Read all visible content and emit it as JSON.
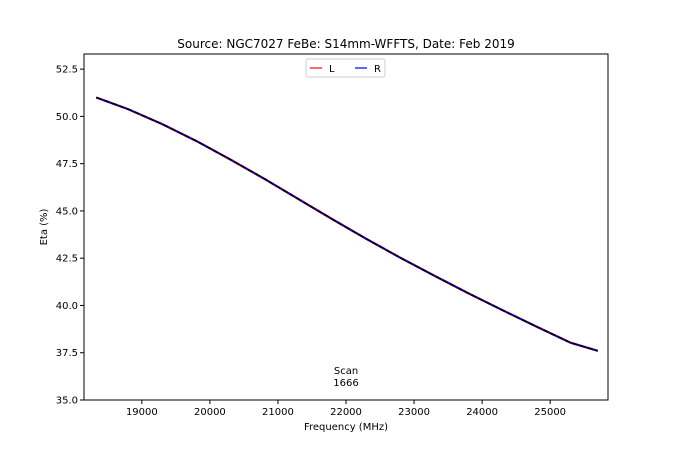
{
  "chart_data": {
    "type": "line",
    "title": "Source: NGC7027 FeBe: S14mm-WFFTS, Date: Feb 2019",
    "xlabel": "Frequency (MHz)",
    "ylabel": "Eta (%)",
    "xlim": [
      18150,
      25850
    ],
    "ylim": [
      35.0,
      53.3
    ],
    "xticks": [
      19000,
      20000,
      21000,
      22000,
      23000,
      24000,
      25000
    ],
    "yticks": [
      35.0,
      37.5,
      40.0,
      42.5,
      45.0,
      47.5,
      50.0,
      52.5
    ],
    "xtick_labels": [
      "19000",
      "20000",
      "21000",
      "22000",
      "23000",
      "24000",
      "25000"
    ],
    "ytick_labels": [
      "35.0",
      "37.5",
      "40.0",
      "42.5",
      "45.0",
      "47.5",
      "50.0",
      "52.5"
    ],
    "grid": false,
    "legend_position": "top-center",
    "series": [
      {
        "name": "L",
        "color": "#ff0000",
        "x": [
          18330,
          18800,
          19300,
          19800,
          20300,
          20800,
          21300,
          21800,
          22300,
          22800,
          23300,
          23800,
          24300,
          24800,
          25300,
          25700
        ],
        "y": [
          51.0,
          50.38,
          49.59,
          48.7,
          47.72,
          46.7,
          45.63,
          44.56,
          43.52,
          42.52,
          41.57,
          40.64,
          39.75,
          38.88,
          38.03,
          37.6
        ]
      },
      {
        "name": "R",
        "color": "#0000ff",
        "x": [
          18330,
          18800,
          19300,
          19800,
          20300,
          20800,
          21300,
          21800,
          22300,
          22800,
          23300,
          23800,
          24300,
          24800,
          25300,
          25700
        ],
        "y": [
          51.0,
          50.38,
          49.59,
          48.7,
          47.72,
          46.7,
          45.63,
          44.56,
          43.52,
          42.52,
          41.57,
          40.64,
          39.75,
          38.88,
          38.03,
          37.6
        ]
      }
    ],
    "fit_color": "#000000",
    "annotation": {
      "line1": "Scan",
      "line2": "1666",
      "x": 22000,
      "y": 36.1
    }
  }
}
